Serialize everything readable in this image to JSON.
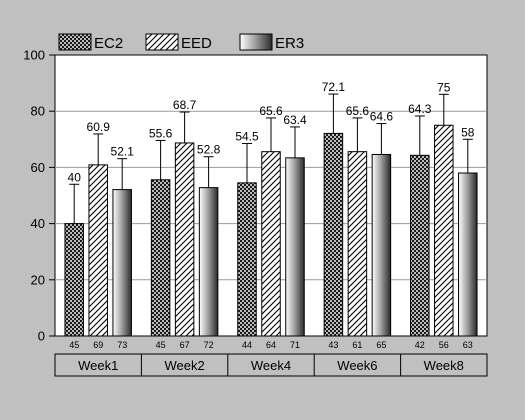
{
  "chart_data": {
    "type": "bar",
    "title": "",
    "xlabel": "",
    "ylabel": "",
    "ylim": [
      0,
      100
    ],
    "yticks": [
      0,
      20,
      40,
      60,
      80,
      100
    ],
    "grid": true,
    "legend_position": "top",
    "categories": [
      "Week1",
      "Week2",
      "Week4",
      "Week6",
      "Week8"
    ],
    "series": [
      {
        "name": "EC2",
        "pattern": "crosshatch",
        "values": [
          40,
          55.6,
          54.5,
          72.1,
          64.3
        ],
        "value_labels": [
          "40",
          "55.6",
          "54.5",
          "72.1",
          "64.3"
        ],
        "errors": [
          14,
          14,
          14,
          14,
          14
        ],
        "counts": [
          "45",
          "45",
          "44",
          "43",
          "42"
        ]
      },
      {
        "name": "EED",
        "pattern": "diagonal",
        "values": [
          60.9,
          68.7,
          65.6,
          65.6,
          75
        ],
        "value_labels": [
          "60.9",
          "68.7",
          "65.6",
          "65.6",
          "75"
        ],
        "errors": [
          11,
          11,
          12,
          12,
          11
        ],
        "counts": [
          "69",
          "67",
          "64",
          "61",
          "56"
        ]
      },
      {
        "name": "ER3",
        "pattern": "gradient",
        "values": [
          52.1,
          52.8,
          63.4,
          64.6,
          58
        ],
        "value_labels": [
          "52.1",
          "52.8",
          "63.4",
          "64.6",
          "58"
        ],
        "errors": [
          11,
          11,
          11,
          11,
          12
        ],
        "counts": [
          "73",
          "72",
          "71",
          "65",
          "63"
        ]
      }
    ]
  }
}
